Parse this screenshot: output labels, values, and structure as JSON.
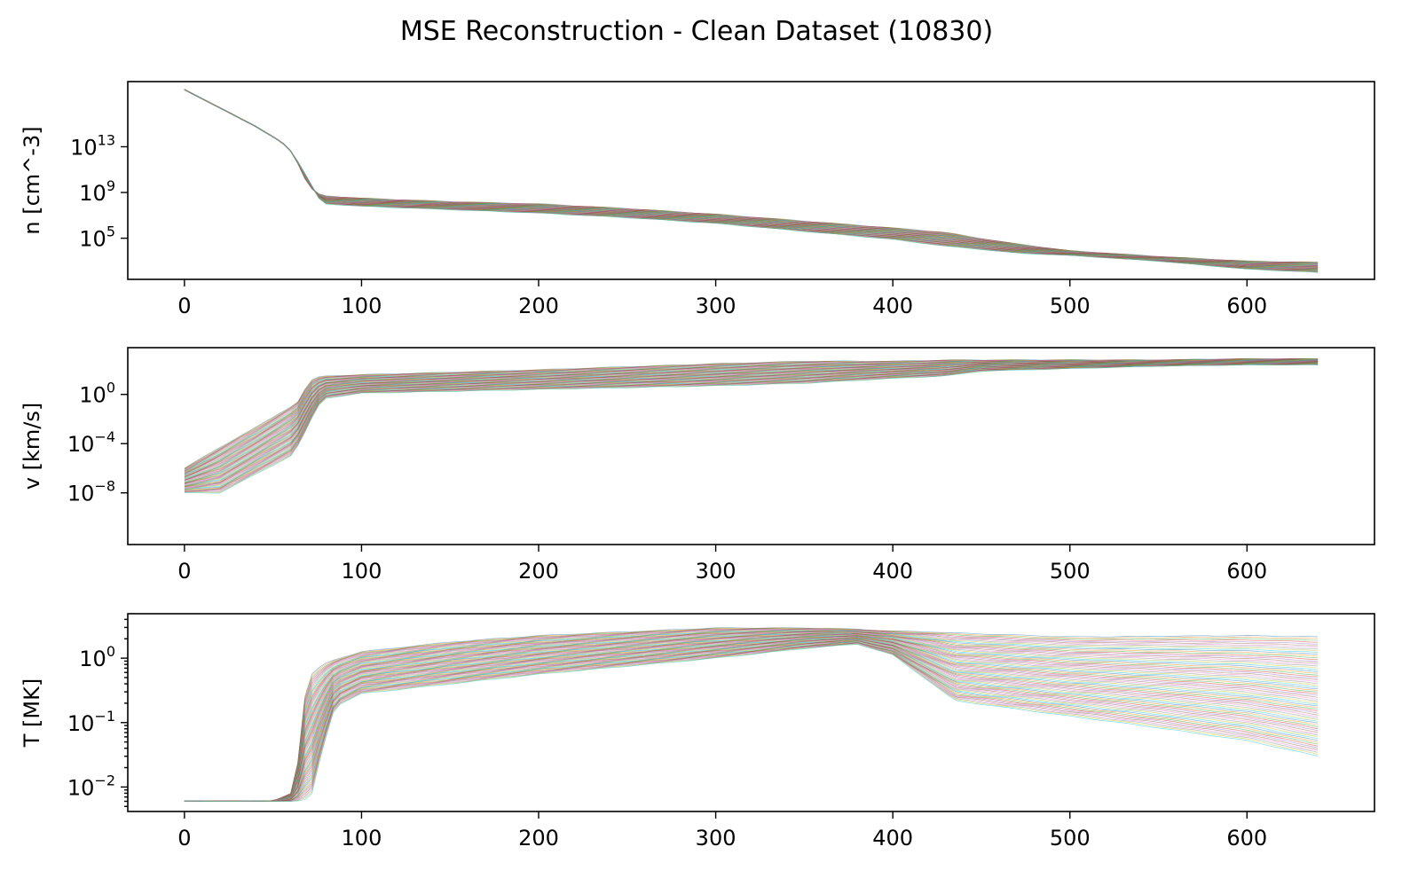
{
  "figure": {
    "title": "MSE Reconstruction - Clean Dataset (10830)"
  },
  "chart_data": [
    {
      "type": "line",
      "ylabel": "n [cm^-3]",
      "yscale": "log",
      "xlim": [
        -32,
        672
      ],
      "ylim_log10": [
        1.4,
        18.7
      ],
      "x_ticks": [
        "0",
        "100",
        "200",
        "300",
        "400",
        "500",
        "600"
      ],
      "y_ticks": [
        {
          "base": "10",
          "exp": "5"
        },
        {
          "base": "10",
          "exp": "9"
        },
        {
          "base": "10",
          "exp": "13"
        }
      ],
      "envelope": {
        "x": [
          0,
          20,
          40,
          55,
          62,
          66,
          70,
          75,
          80,
          100,
          150,
          200,
          250,
          300,
          350,
          400,
          430,
          445,
          470,
          500,
          550,
          600,
          640
        ],
        "log10_upper": [
          18.0,
          16.4,
          14.8,
          13.4,
          12.3,
          10.8,
          9.6,
          8.9,
          8.7,
          8.5,
          8.2,
          8.0,
          7.6,
          7.1,
          6.5,
          5.9,
          5.5,
          5.1,
          4.5,
          3.9,
          3.4,
          3.0,
          2.9
        ],
        "log10_lower": [
          18.0,
          16.4,
          14.8,
          13.4,
          12.3,
          11.1,
          10.2,
          8.6,
          8.0,
          7.8,
          7.5,
          7.2,
          6.8,
          6.3,
          5.6,
          4.9,
          4.3,
          4.1,
          3.7,
          3.5,
          3.0,
          2.3,
          2.0
        ]
      },
      "n_curves_drawn": 70
    },
    {
      "type": "line",
      "ylabel": "v [km/s]",
      "yscale": "log",
      "xlim": [
        -32,
        672
      ],
      "ylim_log10": [
        -12.2,
        3.8
      ],
      "x_ticks": [
        "0",
        "100",
        "200",
        "300",
        "400",
        "500",
        "600"
      ],
      "y_ticks": [
        {
          "base": "10",
          "exp": "−8"
        },
        {
          "base": "10",
          "exp": "−4"
        },
        {
          "base": "10",
          "exp": "0"
        }
      ],
      "envelope": {
        "x": [
          0,
          20,
          40,
          60,
          65,
          70,
          75,
          80,
          100,
          200,
          300,
          350,
          400,
          430,
          450,
          500,
          550,
          600,
          640
        ],
        "log10_upper": [
          -6.0,
          -4.3,
          -2.7,
          -1.0,
          -0.5,
          1.0,
          1.4,
          1.5,
          1.6,
          2.0,
          2.5,
          2.7,
          2.7,
          2.8,
          2.8,
          2.8,
          2.8,
          2.9,
          2.9
        ],
        "log10_lower": [
          -8.0,
          -8.0,
          -6.5,
          -5.0,
          -4.0,
          -2.5,
          -1.0,
          -0.3,
          0.1,
          0.4,
          0.7,
          0.9,
          1.3,
          1.5,
          1.9,
          2.1,
          2.3,
          2.4,
          2.4
        ]
      },
      "n_curves_drawn": 70
    },
    {
      "type": "line",
      "ylabel": "T [MK]",
      "yscale": "log",
      "xlim": [
        -32,
        672
      ],
      "ylim_log10": [
        -2.38,
        0.69
      ],
      "x_ticks": [
        "0",
        "100",
        "200",
        "300",
        "400",
        "500",
        "600"
      ],
      "y_ticks": [
        {
          "base": "10",
          "exp": "−2"
        },
        {
          "base": "10",
          "exp": "−1"
        },
        {
          "base": "10",
          "exp": "0"
        }
      ],
      "envelope": {
        "x": [
          0,
          50,
          60,
          65,
          68,
          72,
          78,
          85,
          100,
          150,
          200,
          300,
          350,
          380,
          400,
          420,
          435,
          500,
          550,
          600,
          640
        ],
        "log10_upper": [
          -2.22,
          -2.22,
          -2.1,
          -1.5,
          -0.6,
          -0.25,
          -0.1,
          -0.02,
          0.1,
          0.25,
          0.35,
          0.47,
          0.47,
          0.45,
          0.42,
          0.41,
          0.39,
          0.33,
          0.34,
          0.35,
          0.33
        ],
        "log10_lower": [
          -2.22,
          -2.22,
          -2.22,
          -2.22,
          -2.2,
          -2.1,
          -1.4,
          -0.75,
          -0.55,
          -0.4,
          -0.25,
          0.0,
          0.15,
          0.22,
          0.05,
          -0.35,
          -0.66,
          -0.9,
          -1.08,
          -1.28,
          -1.52
        ]
      },
      "n_curves_drawn": 70
    }
  ]
}
